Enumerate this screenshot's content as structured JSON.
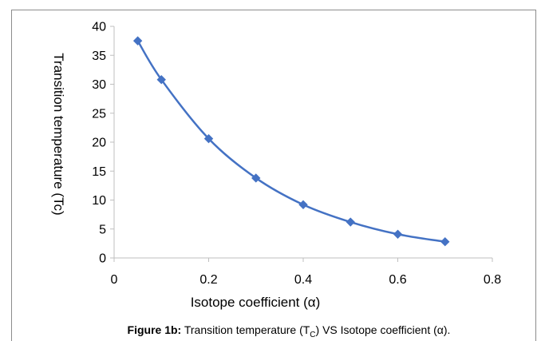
{
  "chart_data": {
    "type": "line",
    "xlabel": "Isotope coefficient (α)",
    "ylabel": "Transition temperature (Tc)",
    "xlim": [
      0,
      0.8
    ],
    "ylim": [
      0,
      40
    ],
    "x_ticks": [
      "0",
      "0.2",
      "0.4",
      "0.6",
      "0.8"
    ],
    "y_ticks": [
      "0",
      "5",
      "10",
      "15",
      "20",
      "25",
      "30",
      "35",
      "40"
    ],
    "grid": false,
    "legend": "none",
    "series": [
      {
        "color": "#4472C4",
        "marker": "diamond",
        "smooth": true,
        "x": [
          0.05,
          0.1,
          0.2,
          0.3,
          0.4,
          0.5,
          0.6,
          0.7
        ],
        "y": [
          37.5,
          30.8,
          20.6,
          13.8,
          9.2,
          6.2,
          4.1,
          2.8
        ]
      }
    ]
  },
  "caption": {
    "label": "Figure 1b:",
    "text_before_sub": " Transition temperature (T",
    "subscript": "C",
    "text_after_sub": ") VS Isotope coefficient (α)."
  }
}
